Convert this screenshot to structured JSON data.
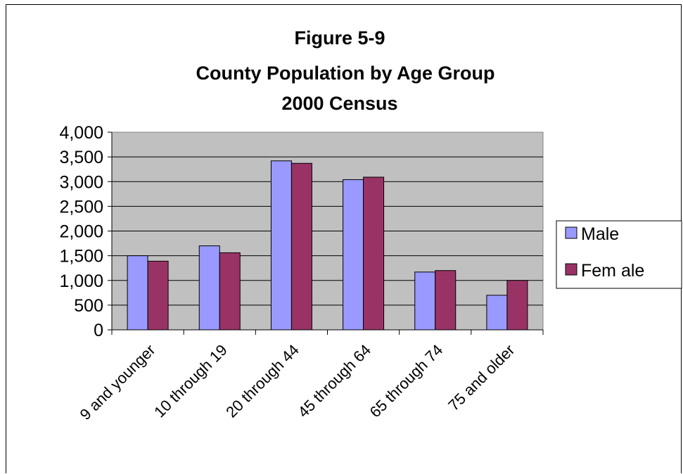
{
  "chart_data": {
    "type": "bar",
    "title_lines": [
      "Figure 5-9",
      "County Population by Age Group",
      "2000 Census"
    ],
    "xlabel": "",
    "ylabel": "",
    "categories": [
      "9 and younger",
      "10 through 19",
      "20 through 44",
      "45 through 64",
      "65 through 74",
      "75 and older"
    ],
    "series": [
      {
        "name": "Male",
        "values": [
          1500,
          1700,
          3420,
          3040,
          1170,
          700
        ],
        "color": "#9999ff"
      },
      {
        "name": "Fem ale",
        "values": [
          1390,
          1560,
          3370,
          3090,
          1200,
          1000
        ],
        "color": "#993366"
      }
    ],
    "ylim": [
      0,
      4000
    ],
    "yticks": [
      "0",
      "500",
      "1,000",
      "1,500",
      "2,000",
      "2,500",
      "3,000",
      "3,500",
      "4,000"
    ],
    "plot_background": "#c0c0c0",
    "grid": true,
    "legend_position": "right"
  }
}
